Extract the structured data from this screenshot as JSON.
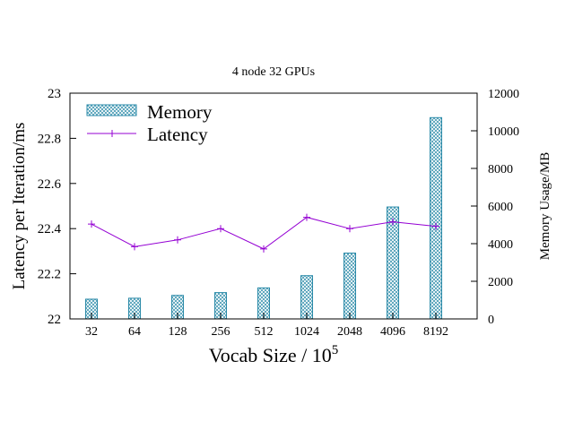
{
  "chart_data": {
    "type": "bar",
    "title": "4 node 32 GPUs",
    "xlabel_base": "Vocab Size / 10",
    "xlabel_exp": "5",
    "ylabel_left": "Latency per Iteration/ms",
    "ylabel_right": "Memory Usage/MB",
    "categories": [
      "32",
      "64",
      "128",
      "256",
      "512",
      "1024",
      "2048",
      "4096",
      "8192"
    ],
    "y_left": {
      "range": [
        22,
        23
      ],
      "ticks": [
        "22",
        "22.2",
        "22.4",
        "22.6",
        "22.8",
        "23"
      ]
    },
    "y_right": {
      "range": [
        0,
        12000
      ],
      "ticks": [
        "0",
        "2000",
        "4000",
        "6000",
        "8000",
        "10000",
        "12000"
      ]
    },
    "series": [
      {
        "name": "Memory",
        "type": "bar",
        "axis": "right",
        "color": "#2a8aa8",
        "values": [
          1050,
          1100,
          1250,
          1400,
          1650,
          2300,
          3500,
          5950,
          10700
        ]
      },
      {
        "name": "Latency",
        "type": "line",
        "axis": "left",
        "color": "#9400d3",
        "values": [
          22.42,
          22.32,
          22.35,
          22.4,
          22.31,
          22.45,
          22.4,
          22.43,
          22.41
        ]
      }
    ],
    "legend": "top-left",
    "grid": false
  }
}
